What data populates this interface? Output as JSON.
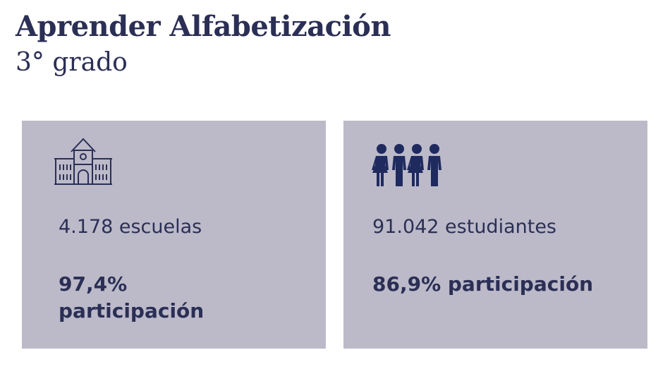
{
  "header": {
    "title": "Aprender Alfabetización",
    "subtitle": "3° grado"
  },
  "cards": [
    {
      "icon": "school-building-icon",
      "count": "4.178 escuelas",
      "participation_line1": "97,4%",
      "participation_line2": "participación"
    },
    {
      "icon": "students-group-icon",
      "count": "91.042 estudiantes",
      "participation": "86,9% participación"
    }
  ],
  "colors": {
    "text": "#2b2f55",
    "card_background": "#bcbac9",
    "page_background": "#ffffff"
  }
}
